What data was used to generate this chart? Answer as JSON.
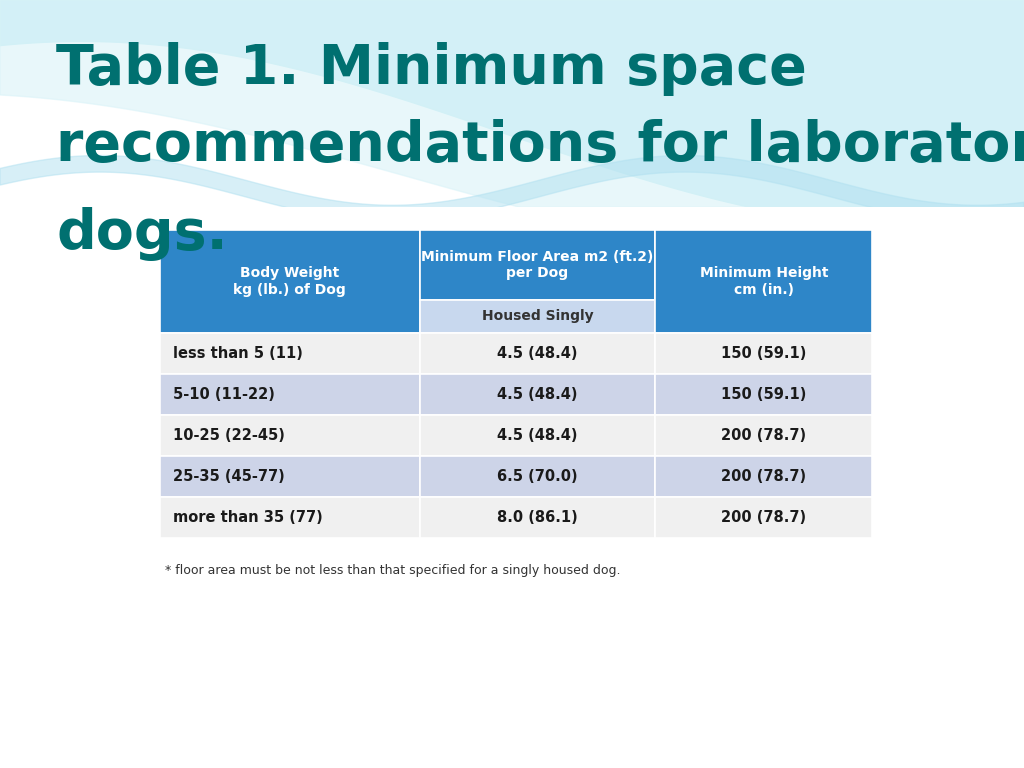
{
  "title_line1": "Table 1. Minimum space",
  "title_line2": "recommendations for laboratory",
  "title_line3": "dogs.",
  "title_color": "#007070",
  "bg_color": "#FFFFFF",
  "wave_bg_color": "#A8DCE8",
  "wave_color1": "#C5ECF5",
  "wave_color2": "#DAF3F8",
  "header_bg_blue": "#2E86C8",
  "header_bg_light": "#C8D8EE",
  "row_bg_odd": "#F0F0F0",
  "row_bg_even": "#CDD4E8",
  "col0_header": "Body Weight\nkg (lb.) of Dog",
  "col1_header": "Minimum Floor Area m2 (ft.2)\nper Dog",
  "col2_header": "Minimum Height\ncm (in.)",
  "sub_header": "Housed Singly",
  "rows": [
    [
      "less than 5 (11)",
      "4.5 (48.4)",
      "150 (59.1)"
    ],
    [
      "5-10 (11-22)",
      "4.5 (48.4)",
      "150 (59.1)"
    ],
    [
      "10-25 (22-45)",
      "4.5 (48.4)",
      "200 (78.7)"
    ],
    [
      "25-35 (45-77)",
      "6.5 (70.0)",
      "200 (78.7)"
    ],
    [
      "more than 35 (77)",
      "8.0 (86.1)",
      "200 (78.7)"
    ]
  ],
  "footnote": "* floor area must be not less than that specified for a singly housed dog.",
  "title_fontsize": 40,
  "header_fontsize": 10,
  "cell_fontsize": 10.5
}
